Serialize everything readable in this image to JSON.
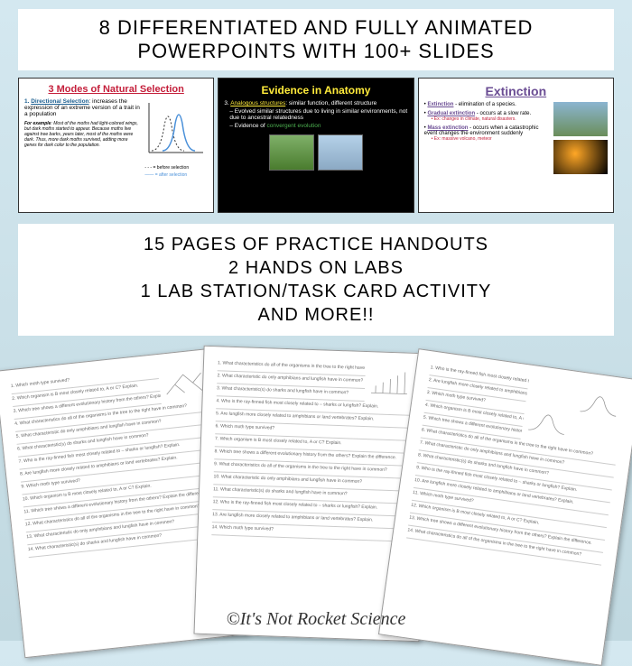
{
  "header": {
    "line1": "8 DIFFERENTIATED AND FULLY ANIMATED",
    "line2": "POWERPOINTS WITH 100+ SLIDES"
  },
  "slide1": {
    "title": "3 Modes of Natural Selection",
    "subtitle_num": "1.",
    "subtitle": "Directional Selection",
    "desc": ": increases the expression of an extreme version of a trait in a population",
    "example_label": "For example",
    "example": ": Most of the moths had light-colored wings, but dark moths started to appear. Because moths live against tree barks, years later, most of the moths were dark. Thus, more dark moths survived, adding more genes for dark color to the population.",
    "legend_before": "= before selection",
    "legend_after": "= after selection",
    "curve_color_before": "#333333",
    "curve_color_after": "#4a90d9"
  },
  "slide2": {
    "title": "Evidence in Anatomy",
    "item_num": "3.",
    "item_title": "Analogous structures",
    "item_desc": ": similar function, different structure",
    "bullet1": "– Evolved similar structures due to living in similar environments, not due to ancestral relatedness",
    "bullet2_a": "– Evidence of ",
    "bullet2_b": "convergent evolution"
  },
  "slide3": {
    "title": "Extinction",
    "t1": "Extinction",
    "t1d": " - elimination of a species.",
    "t2": "Gradual extinction",
    "t2d": " - occurs at a slow rate.",
    "t2ex": "Ex: changes in climate, natural disasters.",
    "t3": "Mass extinction",
    "t3d": " - occurs when a catastrophic event changes the environment suddenly",
    "t3ex": "Ex: massive volcano, meteor"
  },
  "middle": {
    "l1": "15 PAGES OF PRACTICE HANDOUTS",
    "l2": "2 HANDS ON LABS",
    "l3": "1 LAB STATION/TASK CARD ACTIVITY",
    "l4": "AND MORE!!"
  },
  "handout_lines": [
    "Which moth type survived?",
    "Which organism is B most closely related to, A or C? Explain.",
    "Which tree shows a different evolutionary history from the others? Explain the difference.",
    "What characteristics do all of the organisms in the tree to the right have in common?",
    "What characteristic do only amphibians and lungfish have in common?",
    "What characteristic(s) do sharks and lungfish have in common?",
    "Who is the ray-finned fish most closely related to – sharks or lungfish? Explain.",
    "Are lungfish more closely related to amphibians or land vertebrates? Explain."
  ],
  "footer": "©It's Not Rocket Science"
}
